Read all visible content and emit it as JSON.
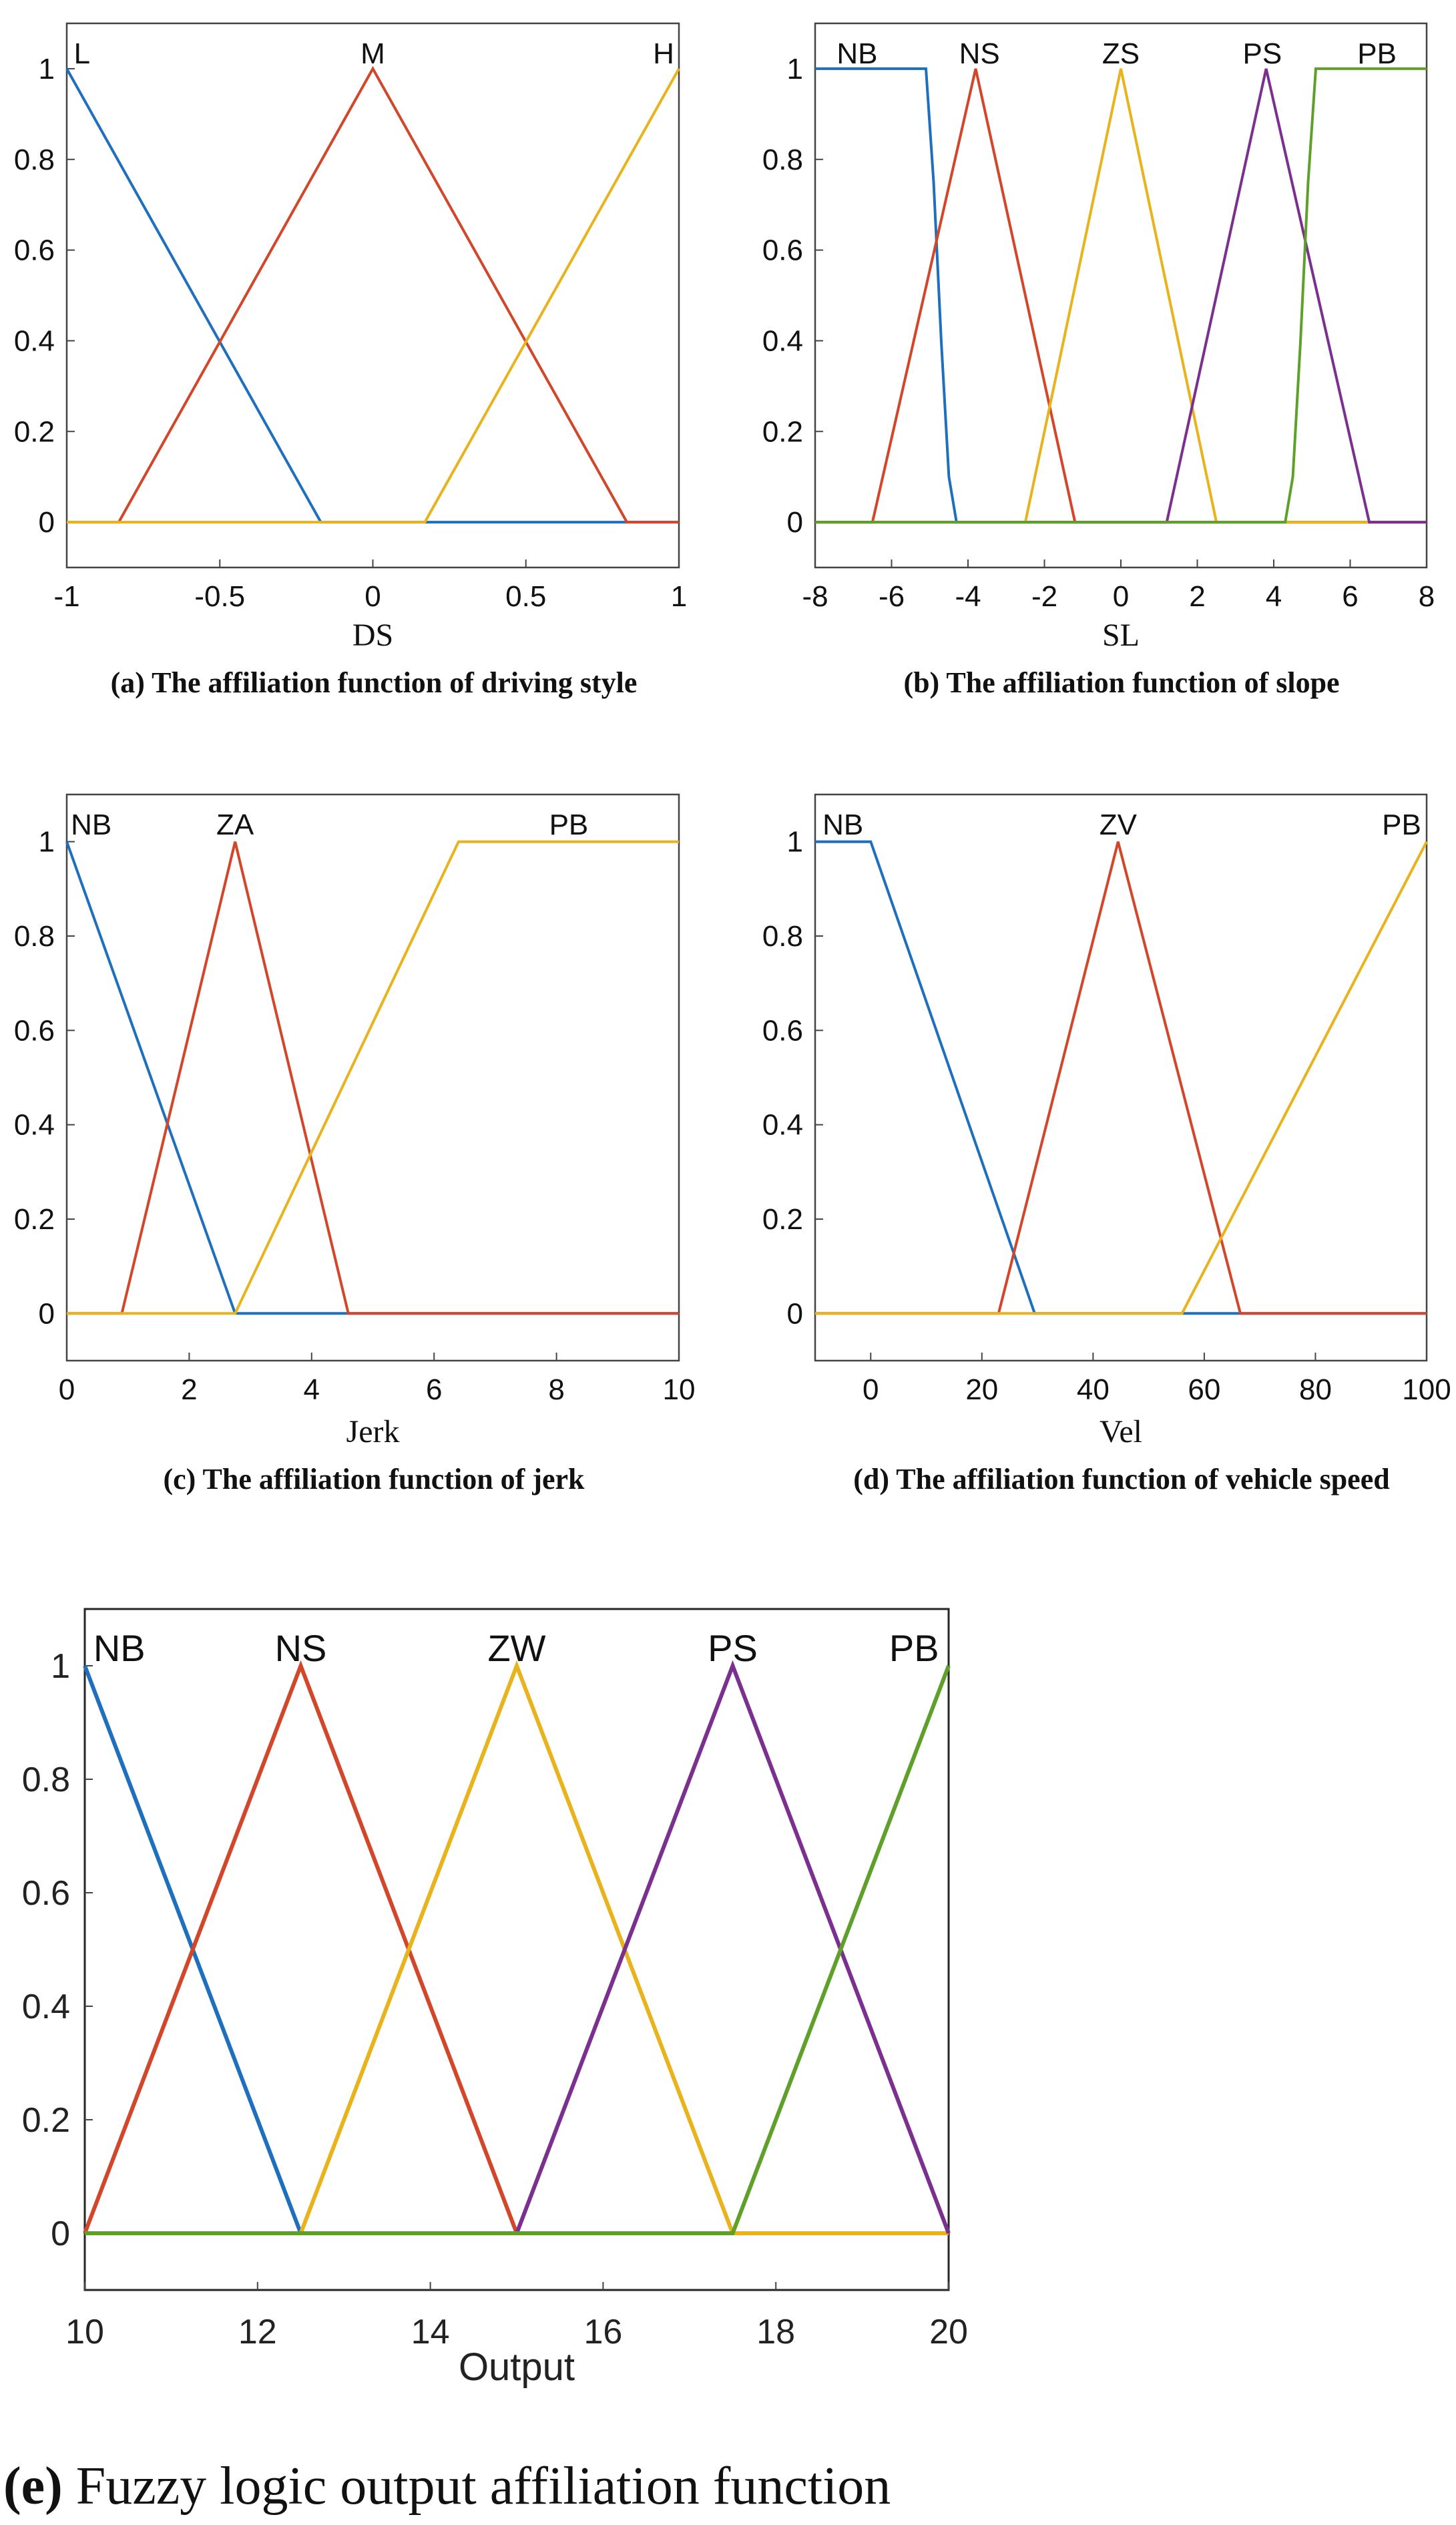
{
  "colors": {
    "blue": "#1f6fbf",
    "red": "#d2462a",
    "yellow": "#e8b31c",
    "purple": "#7b2f8e",
    "green": "#5ea02a"
  },
  "chart_data": [
    {
      "id": "a",
      "type": "line",
      "title": "",
      "caption": "(a) The affiliation function of driving style",
      "xlabel": "DS",
      "ylabel": "",
      "xlim": [
        -1,
        1
      ],
      "ylim": [
        -0.1,
        1.1
      ],
      "xticks": [
        "-1",
        "-0.5",
        "0",
        "0.5",
        "1"
      ],
      "xtick_values": [
        -1,
        -0.5,
        0,
        0.5,
        1
      ],
      "yticks": [
        "0",
        "0.2",
        "0.4",
        "0.6",
        "0.8",
        "1"
      ],
      "ytick_values": [
        0,
        0.2,
        0.4,
        0.6,
        0.8,
        1
      ],
      "series": [
        {
          "name": "L",
          "color": "blue",
          "x": [
            -1,
            -0.17,
            0.83,
            1
          ],
          "y": [
            1,
            0,
            0,
            0
          ]
        },
        {
          "name": "M",
          "color": "red",
          "x": [
            -1,
            -0.83,
            0,
            0.83,
            1
          ],
          "y": [
            0,
            0,
            1,
            0,
            0
          ]
        },
        {
          "name": "H",
          "color": "yellow",
          "x": [
            -1,
            0.17,
            1
          ],
          "y": [
            0,
            0,
            1
          ]
        }
      ],
      "mf_labels": [
        {
          "text": "L",
          "x": -0.95
        },
        {
          "text": "M",
          "x": 0
        },
        {
          "text": "H",
          "x": 0.95
        }
      ]
    },
    {
      "id": "b",
      "type": "line",
      "title": "",
      "caption": "(b) The affiliation function of slope",
      "xlabel": "SL",
      "ylabel": "",
      "xlim": [
        -8,
        8
      ],
      "ylim": [
        -0.1,
        1.1
      ],
      "xticks": [
        "-8",
        "-6",
        "-4",
        "-2",
        "0",
        "2",
        "4",
        "6",
        "8"
      ],
      "xtick_values": [
        -8,
        -6,
        -4,
        -2,
        0,
        2,
        4,
        6,
        8
      ],
      "yticks": [
        "0",
        "0.2",
        "0.4",
        "0.6",
        "0.8",
        "1"
      ],
      "ytick_values": [
        0,
        0.2,
        0.4,
        0.6,
        0.8,
        1
      ],
      "series": [
        {
          "name": "NB",
          "color": "blue",
          "x": [
            -8,
            -5.1,
            -4.9,
            -4.7,
            -4.5,
            -4.3,
            8
          ],
          "y": [
            1,
            1,
            0.75,
            0.4,
            0.1,
            0,
            0
          ]
        },
        {
          "name": "NS",
          "color": "red",
          "x": [
            -8,
            -6.5,
            -3.8,
            -1.2,
            8
          ],
          "y": [
            0,
            0,
            1,
            0,
            0
          ]
        },
        {
          "name": "ZS",
          "color": "yellow",
          "x": [
            -8,
            -2.5,
            0,
            2.5,
            8
          ],
          "y": [
            0,
            0,
            1,
            0,
            0
          ]
        },
        {
          "name": "PS",
          "color": "purple",
          "x": [
            -8,
            1.2,
            3.8,
            6.5,
            8
          ],
          "y": [
            0,
            0,
            1,
            0,
            0
          ]
        },
        {
          "name": "PB",
          "color": "green",
          "x": [
            -8,
            4.3,
            4.5,
            4.7,
            4.9,
            5.1,
            8
          ],
          "y": [
            0,
            0,
            0.1,
            0.4,
            0.75,
            1,
            1
          ]
        }
      ],
      "mf_labels": [
        {
          "text": "NB",
          "x": -6.9
        },
        {
          "text": "NS",
          "x": -3.7
        },
        {
          "text": "ZS",
          "x": 0
        },
        {
          "text": "PS",
          "x": 3.7
        },
        {
          "text": "PB",
          "x": 6.7
        }
      ]
    },
    {
      "id": "c",
      "type": "line",
      "title": "",
      "caption": "(c) The affiliation function of jerk",
      "xlabel": "Jerk",
      "ylabel": "",
      "xlim": [
        0,
        10
      ],
      "ylim": [
        -0.1,
        1.1
      ],
      "xticks": [
        "0",
        "2",
        "4",
        "6",
        "8",
        "10"
      ],
      "xtick_values": [
        0,
        2,
        4,
        6,
        8,
        10
      ],
      "yticks": [
        "0",
        "0.2",
        "0.4",
        "0.6",
        "0.8",
        "1"
      ],
      "ytick_values": [
        0,
        0.2,
        0.4,
        0.6,
        0.8,
        1
      ],
      "series": [
        {
          "name": "NB",
          "color": "blue",
          "x": [
            0,
            2.75,
            10
          ],
          "y": [
            1,
            0,
            0
          ]
        },
        {
          "name": "ZA",
          "color": "red",
          "x": [
            0,
            0.9,
            2.75,
            4.6,
            10
          ],
          "y": [
            0,
            0,
            1,
            0,
            0
          ]
        },
        {
          "name": "PB",
          "color": "yellow",
          "x": [
            0,
            2.75,
            6.4,
            10
          ],
          "y": [
            0,
            0,
            1,
            1
          ]
        }
      ],
      "mf_labels": [
        {
          "text": "NB",
          "x": 0.4
        },
        {
          "text": "ZA",
          "x": 2.75
        },
        {
          "text": "PB",
          "x": 8.2
        }
      ]
    },
    {
      "id": "d",
      "type": "line",
      "title": "",
      "caption": "(d) The affiliation function of vehicle speed",
      "xlabel": "Vel",
      "ylabel": "",
      "xlim": [
        -10,
        100
      ],
      "ylim": [
        -0.1,
        1.1
      ],
      "xticks": [
        "0",
        "20",
        "40",
        "60",
        "80",
        "100"
      ],
      "xtick_values": [
        0,
        20,
        40,
        60,
        80,
        100
      ],
      "yticks": [
        "0",
        "0.2",
        "0.4",
        "0.6",
        "0.8",
        "1"
      ],
      "ytick_values": [
        0,
        0.2,
        0.4,
        0.6,
        0.8,
        1
      ],
      "series": [
        {
          "name": "NB",
          "color": "blue",
          "x": [
            -10,
            0,
            29.5,
            100
          ],
          "y": [
            1,
            1,
            0,
            0
          ]
        },
        {
          "name": "ZV",
          "color": "red",
          "x": [
            -10,
            23,
            44.5,
            66.5,
            100
          ],
          "y": [
            0,
            0,
            1,
            0,
            0
          ]
        },
        {
          "name": "PB",
          "color": "yellow",
          "x": [
            -10,
            56,
            100
          ],
          "y": [
            0,
            0,
            1
          ]
        }
      ],
      "mf_labels": [
        {
          "text": "NB",
          "x": -5
        },
        {
          "text": "ZV",
          "x": 44.5
        },
        {
          "text": "PB",
          "x": 95.5
        }
      ]
    },
    {
      "id": "e",
      "type": "line",
      "title": "",
      "caption_bold": "(e)",
      "caption_rest": " Fuzzy logic output affiliation function",
      "xlabel": "Output",
      "ylabel": "",
      "xlim": [
        10,
        20
      ],
      "ylim": [
        -0.1,
        1.1
      ],
      "xticks": [
        "10",
        "12",
        "14",
        "16",
        "18",
        "20"
      ],
      "xtick_values": [
        10,
        12,
        14,
        16,
        18,
        20
      ],
      "yticks": [
        "0",
        "0.2",
        "0.4",
        "0.6",
        "0.8",
        "1"
      ],
      "ytick_values": [
        0,
        0.2,
        0.4,
        0.6,
        0.8,
        1
      ],
      "series": [
        {
          "name": "NB",
          "color": "blue",
          "x": [
            10,
            12.5,
            20
          ],
          "y": [
            1,
            0,
            0
          ]
        },
        {
          "name": "NS",
          "color": "red",
          "x": [
            10,
            12.5,
            15,
            20
          ],
          "y": [
            0,
            1,
            0,
            0
          ]
        },
        {
          "name": "ZW",
          "color": "yellow",
          "x": [
            10,
            12.5,
            15,
            17.5,
            20
          ],
          "y": [
            0,
            0,
            1,
            0,
            0
          ]
        },
        {
          "name": "PS",
          "color": "purple",
          "x": [
            10,
            15,
            17.5,
            20
          ],
          "y": [
            0,
            0,
            1,
            0
          ]
        },
        {
          "name": "PB",
          "color": "green",
          "x": [
            10,
            17.5,
            20
          ],
          "y": [
            0,
            0,
            1
          ]
        }
      ],
      "mf_labels": [
        {
          "text": "NB",
          "x": 10.4
        },
        {
          "text": "NS",
          "x": 12.5
        },
        {
          "text": "ZW",
          "x": 15
        },
        {
          "text": "PS",
          "x": 17.5
        },
        {
          "text": "PB",
          "x": 19.6
        }
      ]
    }
  ]
}
